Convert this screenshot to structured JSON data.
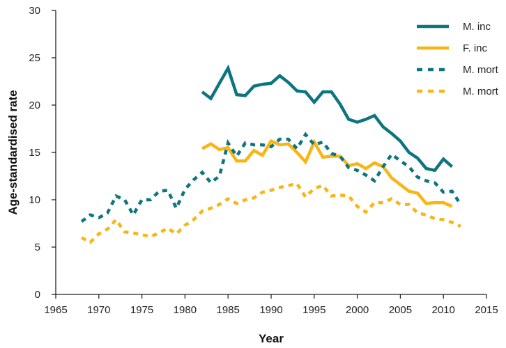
{
  "chart_data": {
    "type": "line",
    "title": "",
    "xlabel": "Year",
    "ylabel": "Age-standardised rate",
    "xlim": [
      1965,
      2015
    ],
    "ylim": [
      0,
      30
    ],
    "xticks": [
      "1965",
      "1970",
      "1975",
      "1980",
      "1985",
      "1990",
      "1995",
      "2000",
      "2005",
      "2010",
      "2015"
    ],
    "yticks": [
      "0",
      "5",
      "10",
      "15",
      "20",
      "25",
      "30"
    ],
    "grid": false,
    "legend_position": "top-right",
    "series": [
      {
        "name": "M. inc",
        "color": "#0e7580",
        "style": "solid",
        "x_start": 1982,
        "values": [
          21.4,
          20.7,
          22.3,
          23.9,
          21.1,
          21.0,
          22.0,
          22.2,
          22.3,
          23.1,
          22.4,
          21.5,
          21.4,
          20.3,
          21.4,
          21.4,
          20.1,
          18.5,
          18.2,
          18.5,
          18.9,
          17.7,
          17.0,
          16.2,
          15.0,
          14.4,
          13.3,
          13.1,
          14.3,
          13.5
        ]
      },
      {
        "name": "F. inc",
        "color": "#f9b515",
        "style": "solid",
        "x_start": 1982,
        "values": [
          15.4,
          15.9,
          15.3,
          15.5,
          14.1,
          14.1,
          15.2,
          14.7,
          16.2,
          15.8,
          15.9,
          15.0,
          14.0,
          16.1,
          14.5,
          14.6,
          14.6,
          13.6,
          13.8,
          13.3,
          13.9,
          13.5,
          12.3,
          11.6,
          10.9,
          10.7,
          9.6,
          9.7,
          9.7,
          9.3
        ]
      },
      {
        "name": "M. mort",
        "color": "#0e7580",
        "style": "dashed",
        "x_start": 1968,
        "values": [
          7.7,
          8.4,
          8.1,
          8.6,
          10.4,
          10.0,
          8.4,
          10.0,
          10.0,
          10.9,
          11.0,
          9.1,
          11.1,
          12.1,
          12.9,
          11.8,
          12.5,
          16.0,
          14.6,
          16.0,
          15.8,
          15.8,
          15.6,
          16.4,
          16.4,
          15.4,
          16.9,
          15.8,
          16.1,
          14.9,
          14.6,
          13.4,
          13.1,
          12.6,
          12.0,
          13.5,
          14.8,
          14.1,
          13.5,
          12.4,
          12.0,
          11.8,
          10.8,
          10.9,
          9.5
        ]
      },
      {
        "name": "M. mort",
        "color": "#f9b515",
        "style": "dashed",
        "x_start": 1968,
        "values": [
          6.0,
          5.5,
          6.4,
          6.9,
          7.9,
          6.6,
          6.5,
          6.3,
          6.1,
          6.5,
          7.0,
          6.4,
          7.3,
          7.9,
          8.8,
          9.1,
          9.5,
          10.1,
          9.6,
          10.0,
          10.2,
          10.8,
          11.0,
          11.3,
          11.5,
          11.7,
          10.3,
          11.2,
          11.5,
          10.4,
          10.5,
          10.4,
          9.3,
          8.7,
          9.7,
          9.7,
          10.1,
          9.5,
          9.5,
          8.6,
          8.4,
          8.0,
          7.9,
          7.6,
          7.2
        ]
      }
    ]
  }
}
